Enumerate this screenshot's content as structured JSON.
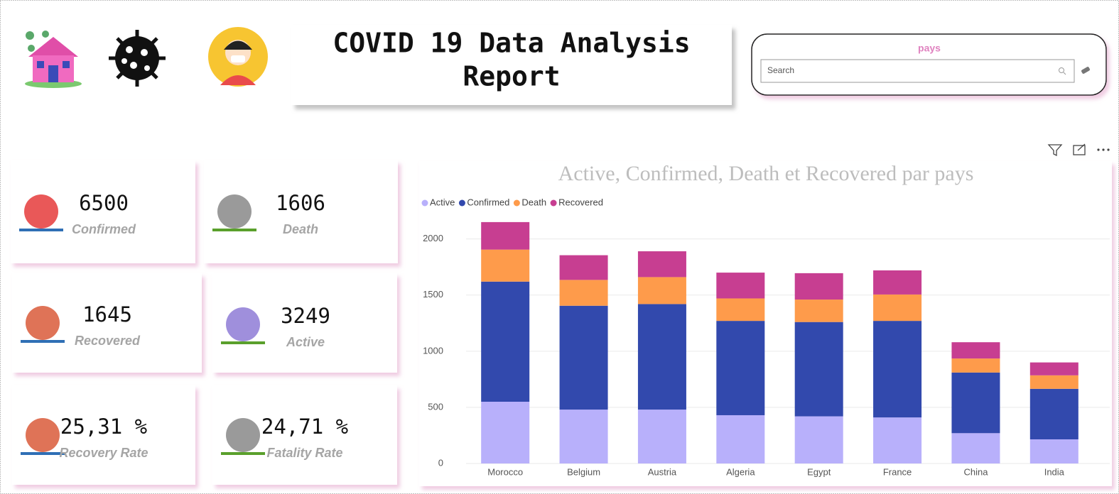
{
  "header": {
    "title_lines": [
      "COVID 19 Data Analysis",
      "Report"
    ]
  },
  "search": {
    "label": "pays",
    "placeholder": "Search"
  },
  "kpis": [
    {
      "value": 6500,
      "label": "Confirmed"
    },
    {
      "value": 1606,
      "label": "Death"
    },
    {
      "value": 1645,
      "label": "Recovered"
    },
    {
      "value": 3249,
      "label": "Active"
    },
    {
      "value": "25,31 %",
      "label": "Recovery Rate"
    },
    {
      "value": "24,71 %",
      "label": "Fatality Rate"
    }
  ],
  "chart_data": {
    "type": "stacked-bar",
    "title": "Active, Confirmed, Death et Recovered par pays",
    "categories": [
      "Morocco",
      "Belgium",
      "Austria",
      "Algeria",
      "Egypt",
      "France",
      "China",
      "India"
    ],
    "series": [
      {
        "name": "Active",
        "color": "#b8b0fb",
        "values": [
          550,
          480,
          480,
          430,
          420,
          410,
          270,
          215
        ]
      },
      {
        "name": "Confirmed",
        "color": "#3249ad",
        "values": [
          1070,
          925,
          940,
          840,
          840,
          860,
          540,
          450
        ]
      },
      {
        "name": "Death",
        "color": "#fe9b4b",
        "values": [
          285,
          230,
          240,
          200,
          200,
          235,
          125,
          120
        ]
      },
      {
        "name": "Recovered",
        "color": "#c73e91",
        "values": [
          245,
          220,
          230,
          230,
          235,
          215,
          145,
          115
        ]
      }
    ],
    "ylim": [
      0,
      2200
    ],
    "yticks": [
      0,
      500,
      1000,
      1500,
      2000
    ],
    "grid": true,
    "legend": "top-left"
  }
}
